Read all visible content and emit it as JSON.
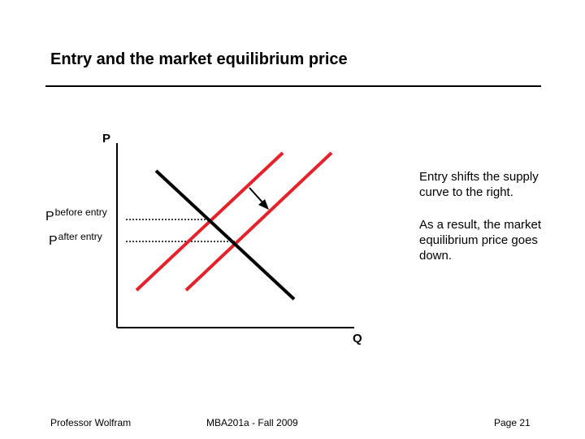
{
  "title": "Entry and the market equilibrium price",
  "axes": {
    "y_label": "P",
    "x_label": "Q"
  },
  "price_labels": {
    "before": {
      "main": "P",
      "sub": "before entry"
    },
    "after": {
      "main": "P",
      "sub": "after entry"
    }
  },
  "notes": [
    "Entry shifts the supply curve to the right.",
    "As a result, the market equilibrium price goes down."
  ],
  "colors": {
    "supply": "#e8202a",
    "demand": "#000000",
    "axis": "#000000"
  },
  "footer": {
    "left": "Professor Wolfram",
    "center": "MBA201a - Fall 2009",
    "right": "Page 21"
  }
}
